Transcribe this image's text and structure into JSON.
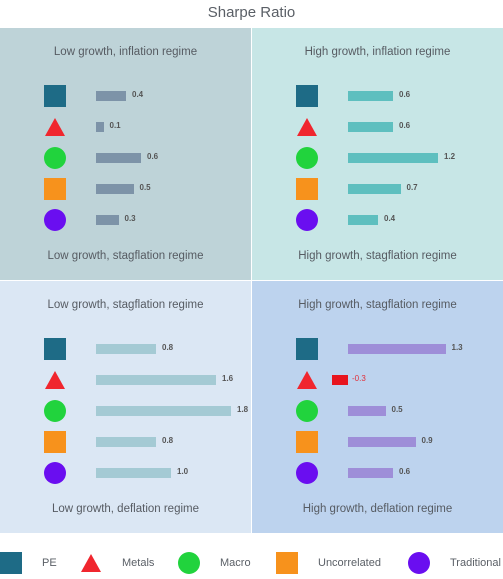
{
  "chart_data": {
    "type": "bar",
    "title": "Sharpe Ratio",
    "categories": [
      "PE",
      "Metals",
      "Macro",
      "Uncorrelated",
      "Traditional"
    ],
    "markers": [
      {
        "name": "PE",
        "shape": "square",
        "color": "#1e6b86"
      },
      {
        "name": "Metals",
        "shape": "triangle",
        "color": "#f0262e"
      },
      {
        "name": "Macro",
        "shape": "circle",
        "color": "#21d33d"
      },
      {
        "name": "Uncorrelated",
        "shape": "square",
        "color": "#f7921c"
      },
      {
        "name": "Traditional",
        "shape": "circle",
        "color": "#6a0ef0"
      }
    ],
    "panels": [
      {
        "top_label": "Low growth, inflation regime",
        "bottom_label": "Low growth, stagflation regime",
        "background": "#bed3d8",
        "bar_color": "#7d93a8",
        "values": [
          0.4,
          0.1,
          0.6,
          0.5,
          0.3
        ],
        "value_labels": [
          "0.4",
          "0.1",
          "0.6",
          "0.5",
          "0.3"
        ]
      },
      {
        "top_label": "High growth, inflation regime",
        "bottom_label": "High growth, stagflation regime",
        "background": "#c7e6e6",
        "bar_color": "#5ebfbf",
        "values": [
          0.6,
          0.6,
          1.2,
          0.7,
          0.4
        ],
        "value_labels": [
          "0.6",
          "0.6",
          "1.2",
          "0.7",
          "0.4"
        ]
      },
      {
        "top_label": "Low growth, stagflation regime",
        "bottom_label": "Low growth, deflation regime",
        "background": "#dbe7f4",
        "bar_color": "#a4cad4",
        "values": [
          0.8,
          1.6,
          1.8,
          0.8,
          1.0
        ],
        "value_labels": [
          "0.8",
          "1.6",
          "1.8",
          "0.8",
          "1.0"
        ]
      },
      {
        "top_label": "High growth, stagflation regime",
        "bottom_label": "High growth, deflation regime",
        "background": "#bdd3ee",
        "bar_color": "#9e8ed8",
        "negative_color": "#e8141e",
        "values": [
          1.3,
          -0.3,
          0.5,
          0.9,
          0.6
        ],
        "value_labels": [
          "1.3",
          "-0.3",
          "0.5",
          "0.9",
          "0.6"
        ]
      }
    ],
    "legend": {
      "position": "bottom",
      "items": [
        "PE",
        "Metals",
        "Macro",
        "Uncorrelated",
        "Traditional"
      ]
    }
  }
}
